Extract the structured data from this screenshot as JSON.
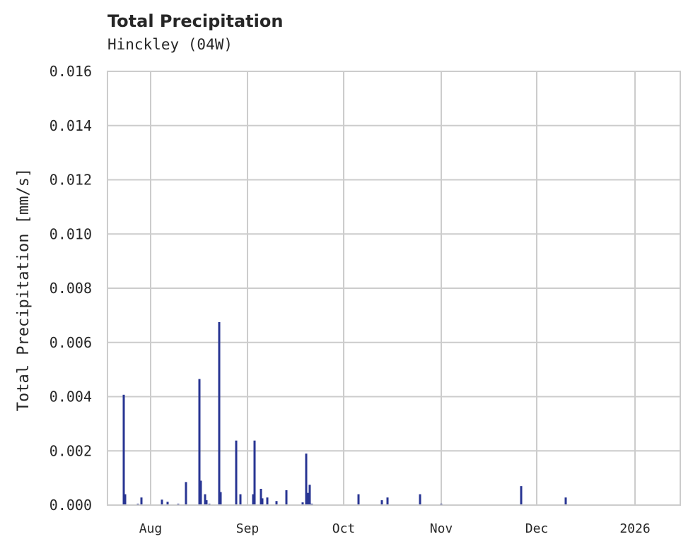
{
  "header": {
    "title": "Total Precipitation",
    "subtitle": "Hinckley (04W)"
  },
  "colors": {
    "bar": "#283593",
    "grid": "#cccccc",
    "axis": "#cccccc",
    "text": "#262626"
  },
  "chart_data": {
    "type": "bar",
    "title": "Total Precipitation",
    "subtitle": "Hinckley (04W)",
    "xlabel": "",
    "ylabel": "Total Precipitation [mm/s]",
    "ylim": [
      0,
      0.016
    ],
    "yticks": [
      "0.000",
      "0.002",
      "0.004",
      "0.006",
      "0.008",
      "0.010",
      "0.012",
      "0.014",
      "0.016"
    ],
    "xticks": [
      "Aug",
      "Sep",
      "Oct",
      "Nov",
      "Dec",
      "2026"
    ],
    "grid": true,
    "legend": null,
    "x": [
      "2025-07-23a",
      "2025-07-23b",
      "2025-07-28",
      "2025-07-29",
      "2025-08-05",
      "2025-08-06",
      "2025-08-10",
      "2025-08-12",
      "2025-08-16a",
      "2025-08-16b",
      "2025-08-18a",
      "2025-08-18b",
      "2025-08-19",
      "2025-08-22a",
      "2025-08-22b",
      "2025-08-28",
      "2025-08-29",
      "2025-09-02",
      "2025-09-03",
      "2025-09-05a",
      "2025-09-05b",
      "2025-09-07",
      "2025-09-10",
      "2025-09-13",
      "2025-09-18",
      "2025-09-19a",
      "2025-09-19b",
      "2025-09-20",
      "2025-09-21",
      "2025-10-05",
      "2025-10-12",
      "2025-10-14",
      "2025-10-25",
      "2025-11-01",
      "2025-11-26",
      "2025-12-10"
    ],
    "px": [
      175,
      177,
      195,
      200,
      229,
      237,
      252,
      263,
      282,
      284,
      290,
      292,
      296,
      310,
      312,
      334,
      340,
      358,
      360,
      369,
      371,
      378,
      391,
      405,
      428,
      433,
      435,
      438,
      441,
      507,
      540,
      548,
      594,
      624,
      737,
      800
    ],
    "values": [
      0.00407,
      0.0004,
      5e-05,
      0.00028,
      0.0002,
      0.00012,
      5e-05,
      0.00085,
      0.00465,
      0.0009,
      0.0004,
      0.00018,
      5e-05,
      0.00675,
      0.00048,
      0.00238,
      0.0004,
      0.0004,
      0.00238,
      0.0006,
      0.00025,
      0.00028,
      0.00015,
      0.00055,
      0.0001,
      0.0019,
      0.00045,
      0.00075,
      5e-05,
      0.0004,
      0.00018,
      0.00028,
      0.0004,
      5e-05,
      0.0007,
      0.00028
    ]
  }
}
